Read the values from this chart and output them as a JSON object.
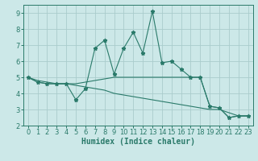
{
  "xlabel": "Humidex (Indice chaleur)",
  "xlim": [
    -0.5,
    23.5
  ],
  "ylim": [
    2,
    9.5
  ],
  "yticks": [
    2,
    3,
    4,
    5,
    6,
    7,
    8,
    9
  ],
  "xticks": [
    0,
    1,
    2,
    3,
    4,
    5,
    6,
    7,
    8,
    9,
    10,
    11,
    12,
    13,
    14,
    15,
    16,
    17,
    18,
    19,
    20,
    21,
    22,
    23
  ],
  "bg_color": "#cce8e8",
  "grid_color": "#aacccc",
  "line_color": "#2a7a6a",
  "lines": [
    {
      "x": [
        0,
        1,
        2,
        3,
        4,
        5,
        6,
        7,
        8,
        9,
        10,
        11,
        12,
        13,
        14,
        15,
        16,
        17,
        18,
        19,
        20,
        21,
        22,
        23
      ],
      "y": [
        5.0,
        4.7,
        4.6,
        4.6,
        4.6,
        3.6,
        4.3,
        6.8,
        7.3,
        5.2,
        6.8,
        7.8,
        6.5,
        9.1,
        5.9,
        6.0,
        5.5,
        5.0,
        5.0,
        3.2,
        3.1,
        2.5,
        2.6,
        2.6
      ],
      "marker": true
    },
    {
      "x": [
        0,
        1,
        2,
        3,
        4,
        5,
        6,
        7,
        8,
        9,
        10,
        11,
        12,
        13,
        14,
        15,
        16,
        17,
        18,
        19,
        20,
        21,
        22,
        23
      ],
      "y": [
        5.0,
        4.7,
        4.6,
        4.6,
        4.6,
        4.6,
        4.7,
        4.8,
        4.9,
        5.0,
        5.0,
        5.0,
        5.0,
        5.0,
        5.0,
        5.0,
        5.0,
        5.0,
        5.0,
        3.2,
        3.1,
        2.5,
        2.6,
        2.6
      ],
      "marker": false
    },
    {
      "x": [
        0,
        1,
        2,
        3,
        4,
        5,
        6,
        7,
        8,
        9,
        10,
        11,
        12,
        13,
        14,
        15,
        16,
        17,
        18,
        19,
        20,
        21,
        22,
        23
      ],
      "y": [
        5.0,
        4.8,
        4.7,
        4.6,
        4.6,
        4.5,
        4.4,
        4.3,
        4.2,
        4.0,
        3.9,
        3.8,
        3.7,
        3.6,
        3.5,
        3.4,
        3.3,
        3.2,
        3.1,
        3.0,
        3.0,
        2.8,
        2.6,
        2.6
      ],
      "marker": false
    }
  ],
  "tick_fontsize": 6,
  "xlabel_fontsize": 7
}
